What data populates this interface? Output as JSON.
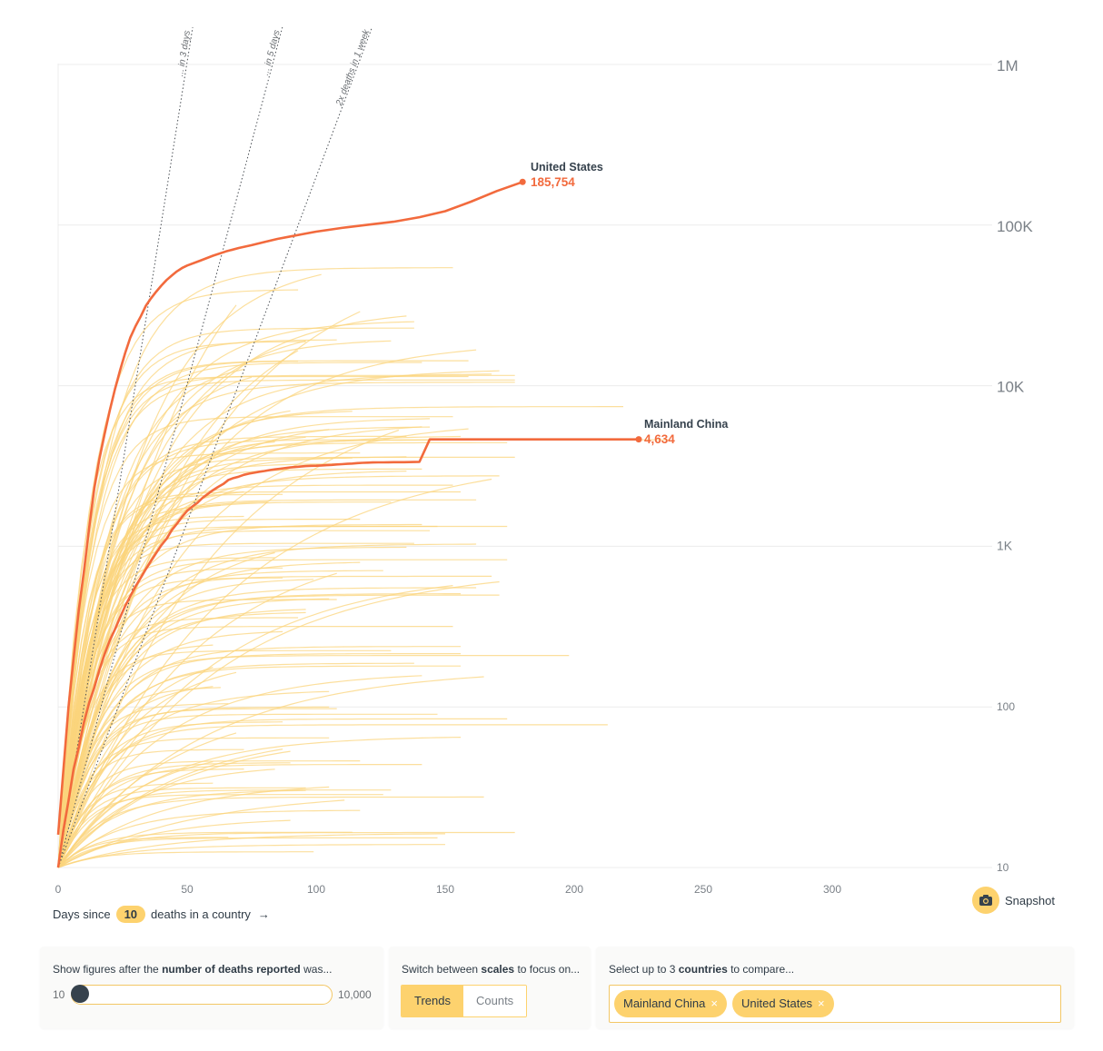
{
  "chart_data": {
    "type": "line",
    "xlabel_prefix": "Days since",
    "xlabel_threshold": "10",
    "xlabel_suffix": "deaths in a country",
    "xlabel_arrow": "→",
    "xlim": [
      0,
      360
    ],
    "ylim": [
      10,
      1000000
    ],
    "yscale": "log",
    "x_ticks": [
      "0",
      "50",
      "100",
      "150",
      "200",
      "250",
      "300"
    ],
    "y_ticks": [
      "10",
      "100",
      "1K",
      "10K",
      "100K",
      "1M"
    ],
    "grid": true,
    "doubling_lines": [
      {
        "label": "... in 3 days",
        "days": 3
      },
      {
        "label": "... in 5 days",
        "days": 5
      },
      {
        "label": "2x deaths in 1 week",
        "days": 7
      }
    ],
    "highlighted": [
      {
        "name": "United States",
        "value_label": "185,754",
        "color": "#f26a3d",
        "points": [
          [
            0,
            16
          ],
          [
            2,
            40
          ],
          [
            4,
            100
          ],
          [
            6,
            200
          ],
          [
            8,
            400
          ],
          [
            10,
            700
          ],
          [
            12,
            1300
          ],
          [
            14,
            2300
          ],
          [
            16,
            3500
          ],
          [
            18,
            5000
          ],
          [
            20,
            7000
          ],
          [
            22,
            9500
          ],
          [
            24,
            12500
          ],
          [
            26,
            16000
          ],
          [
            28,
            20000
          ],
          [
            30,
            23500
          ],
          [
            32,
            27000
          ],
          [
            34,
            31500
          ],
          [
            36,
            35000
          ],
          [
            38,
            38500
          ],
          [
            40,
            42000
          ],
          [
            42,
            45500
          ],
          [
            44,
            48500
          ],
          [
            46,
            51500
          ],
          [
            48,
            54000
          ],
          [
            50,
            56000
          ],
          [
            55,
            60000
          ],
          [
            60,
            64500
          ],
          [
            65,
            68500
          ],
          [
            70,
            72000
          ],
          [
            75,
            75000
          ],
          [
            80,
            78500
          ],
          [
            85,
            82000
          ],
          [
            90,
            85000
          ],
          [
            95,
            88000
          ],
          [
            100,
            91000
          ],
          [
            110,
            96000
          ],
          [
            120,
            100500
          ],
          [
            130,
            105000
          ],
          [
            140,
            112000
          ],
          [
            150,
            122000
          ],
          [
            160,
            140000
          ],
          [
            170,
            163000
          ],
          [
            180,
            185754
          ]
        ]
      },
      {
        "name": "Mainland China",
        "value_label": "4,634",
        "color": "#f26a3d",
        "points": [
          [
            0,
            10
          ],
          [
            2,
            17
          ],
          [
            4,
            26
          ],
          [
            6,
            41
          ],
          [
            8,
            56
          ],
          [
            10,
            80
          ],
          [
            12,
            106
          ],
          [
            14,
            132
          ],
          [
            16,
            170
          ],
          [
            18,
            213
          ],
          [
            20,
            259
          ],
          [
            22,
            304
          ],
          [
            24,
            361
          ],
          [
            26,
            425
          ],
          [
            28,
            490
          ],
          [
            30,
            563
          ],
          [
            32,
            636
          ],
          [
            34,
            722
          ],
          [
            36,
            811
          ],
          [
            38,
            908
          ],
          [
            40,
            1016
          ],
          [
            42,
            1113
          ],
          [
            44,
            1259
          ],
          [
            46,
            1380
          ],
          [
            48,
            1523
          ],
          [
            50,
            1665
          ],
          [
            52,
            1770
          ],
          [
            54,
            1868
          ],
          [
            56,
            2004
          ],
          [
            58,
            2118
          ],
          [
            60,
            2236
          ],
          [
            62,
            2345
          ],
          [
            64,
            2442
          ],
          [
            66,
            2592
          ],
          [
            68,
            2663
          ],
          [
            70,
            2715
          ],
          [
            72,
            2788
          ],
          [
            74,
            2835
          ],
          [
            76,
            2870
          ],
          [
            78,
            2912
          ],
          [
            80,
            2943
          ],
          [
            82,
            2981
          ],
          [
            84,
            3012
          ],
          [
            86,
            3042
          ],
          [
            88,
            3070
          ],
          [
            90,
            3097
          ],
          [
            92,
            3119
          ],
          [
            94,
            3136
          ],
          [
            96,
            3158
          ],
          [
            98,
            3169
          ],
          [
            100,
            3176
          ],
          [
            102,
            3189
          ],
          [
            104,
            3199
          ],
          [
            106,
            3213
          ],
          [
            108,
            3231
          ],
          [
            110,
            3245
          ],
          [
            112,
            3261
          ],
          [
            114,
            3277
          ],
          [
            116,
            3295
          ],
          [
            118,
            3309
          ],
          [
            120,
            3318
          ],
          [
            122,
            3326
          ],
          [
            124,
            3330
          ],
          [
            126,
            3333
          ],
          [
            128,
            3335
          ],
          [
            130,
            3339
          ],
          [
            132,
            3340
          ],
          [
            134,
            3342
          ],
          [
            136,
            3345
          ],
          [
            138,
            3349
          ],
          [
            140,
            3351
          ],
          [
            144,
            4632
          ],
          [
            160,
            4633
          ],
          [
            180,
            4634
          ],
          [
            200,
            4634
          ],
          [
            225,
            4634
          ]
        ]
      }
    ]
  },
  "labels": {
    "us_name": "United States",
    "us_value": "185,754",
    "cn_name": "Mainland China",
    "cn_value": "4,634"
  },
  "snapshot_label": "Snapshot",
  "controls": {
    "deaths_prefix": "Show figures after the",
    "deaths_bold": "number of deaths reported",
    "deaths_suffix": "was...",
    "slider_min": "10",
    "slider_max": "10,000",
    "slider_value_fraction": 0.0,
    "scales_prefix": "Switch between",
    "scales_bold": "scales",
    "scales_suffix": "to focus on...",
    "scale_options": [
      "Trends",
      "Counts"
    ],
    "scale_selected": "Trends",
    "countries_prefix": "Select up to 3",
    "countries_bold": "countries",
    "countries_suffix": "to compare...",
    "selected_countries": [
      "Mainland China",
      "United States"
    ],
    "remove_glyph": "×"
  },
  "colors": {
    "accent": "#fdd26e",
    "highlight": "#f26a3d",
    "background_lines": "#fbd47c",
    "grid": "#ececec"
  }
}
